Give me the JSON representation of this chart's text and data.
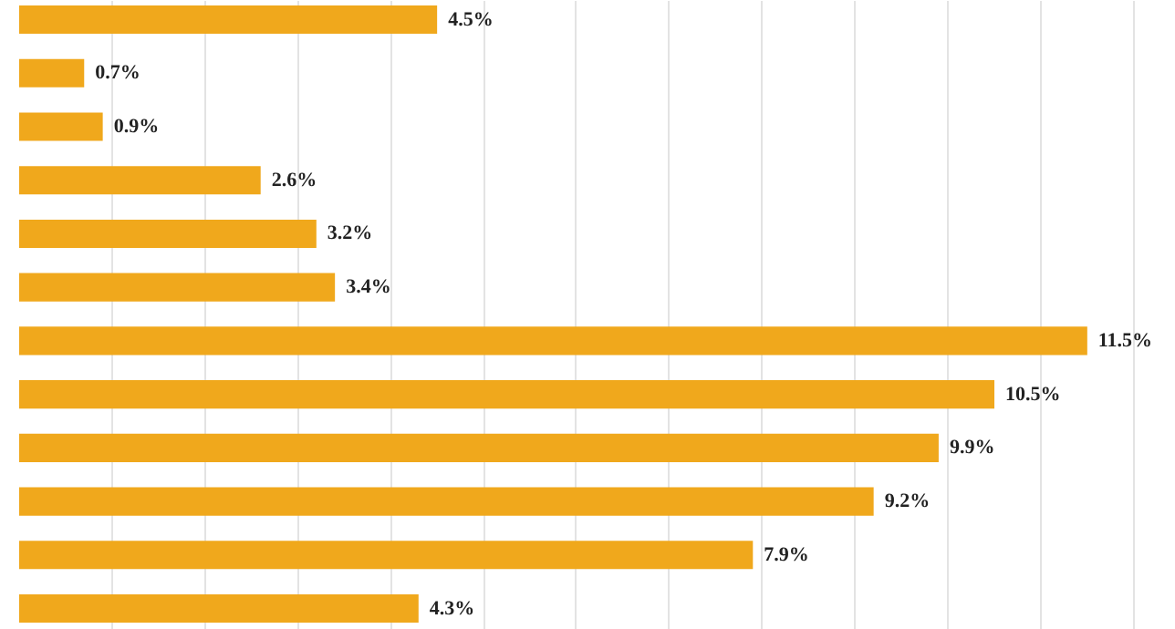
{
  "chart_data": {
    "type": "bar",
    "orientation": "horizontal",
    "categories": [
      null,
      null,
      null,
      null,
      null,
      null,
      null,
      null,
      null,
      null,
      null,
      null
    ],
    "values": [
      4.5,
      0.7,
      0.9,
      2.6,
      3.2,
      3.4,
      11.5,
      10.5,
      9.9,
      9.2,
      7.9,
      4.3
    ],
    "value_labels": [
      "4.5%",
      "0.7%",
      "0.9%",
      "2.6%",
      "3.2%",
      "3.4%",
      "11.5%",
      "10.5%",
      "9.9%",
      "9.2%",
      "7.9%",
      "4.3%"
    ],
    "color": "#f0a81c",
    "grid": "x",
    "tick_labels": false
  }
}
